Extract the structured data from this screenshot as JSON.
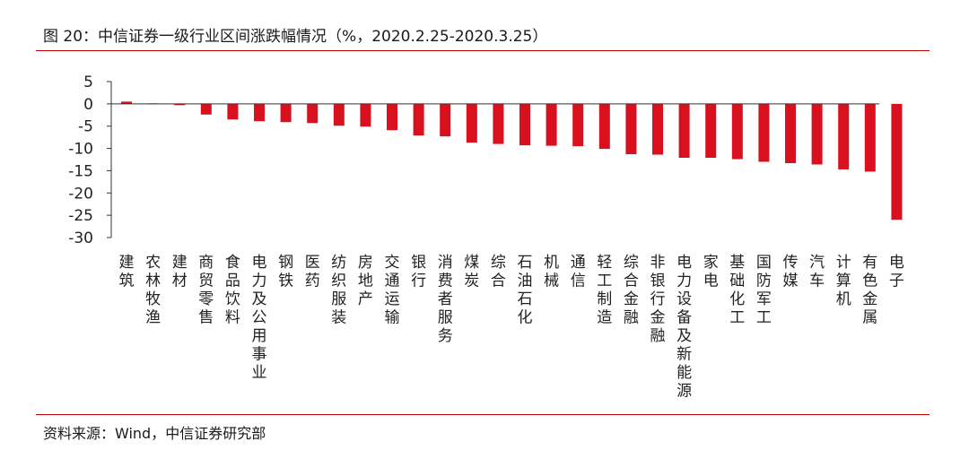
{
  "header": {
    "title": "图 20：中信证券一级行业区间涨跌幅情况（%，2020.2.25-2020.3.25）"
  },
  "footer": {
    "source": "资料来源：Wind，中信证券研究部"
  },
  "colors": {
    "bar": "#d9101e",
    "rule": "#c00000",
    "axis": "#333333"
  },
  "chart_data": {
    "type": "bar",
    "title": "图 20：中信证券一级行业区间涨跌幅情况（%，2020.2.25-2020.3.25）",
    "xlabel": "",
    "ylabel": "",
    "ylim": [
      -30,
      5
    ],
    "yticks": [
      5,
      0,
      -5,
      -10,
      -15,
      -20,
      -25,
      -30
    ],
    "grid": false,
    "categories": [
      "建筑",
      "农林牧渔",
      "建材",
      "商贸零售",
      "食品饮料",
      "电力及公用事业",
      "钢铁",
      "医药",
      "纺织服装",
      "房地产",
      "交通运输",
      "银行",
      "消费者服务",
      "煤炭",
      "综合",
      "石油石化",
      "机械",
      "通信",
      "轻工制造",
      "综合金融",
      "非银行金融",
      "电力设备及新能源",
      "家电",
      "基础化工",
      "国防军工",
      "传媒",
      "汽车",
      "计算机",
      "有色金属",
      "电子"
    ],
    "series": [
      {
        "values": [
          0.5,
          0.1,
          -0.3,
          -2.4,
          -3.5,
          -3.9,
          -4.1,
          -4.3,
          -4.9,
          -5.1,
          -5.9,
          -7.1,
          -7.3,
          -8.7,
          -9.0,
          -9.3,
          -9.4,
          -9.5,
          -10.1,
          -11.3,
          -11.4,
          -12.1,
          -12.1,
          -12.4,
          -13.0,
          -13.3,
          -13.6,
          -14.7,
          -15.2,
          -26.0
        ]
      }
    ]
  }
}
